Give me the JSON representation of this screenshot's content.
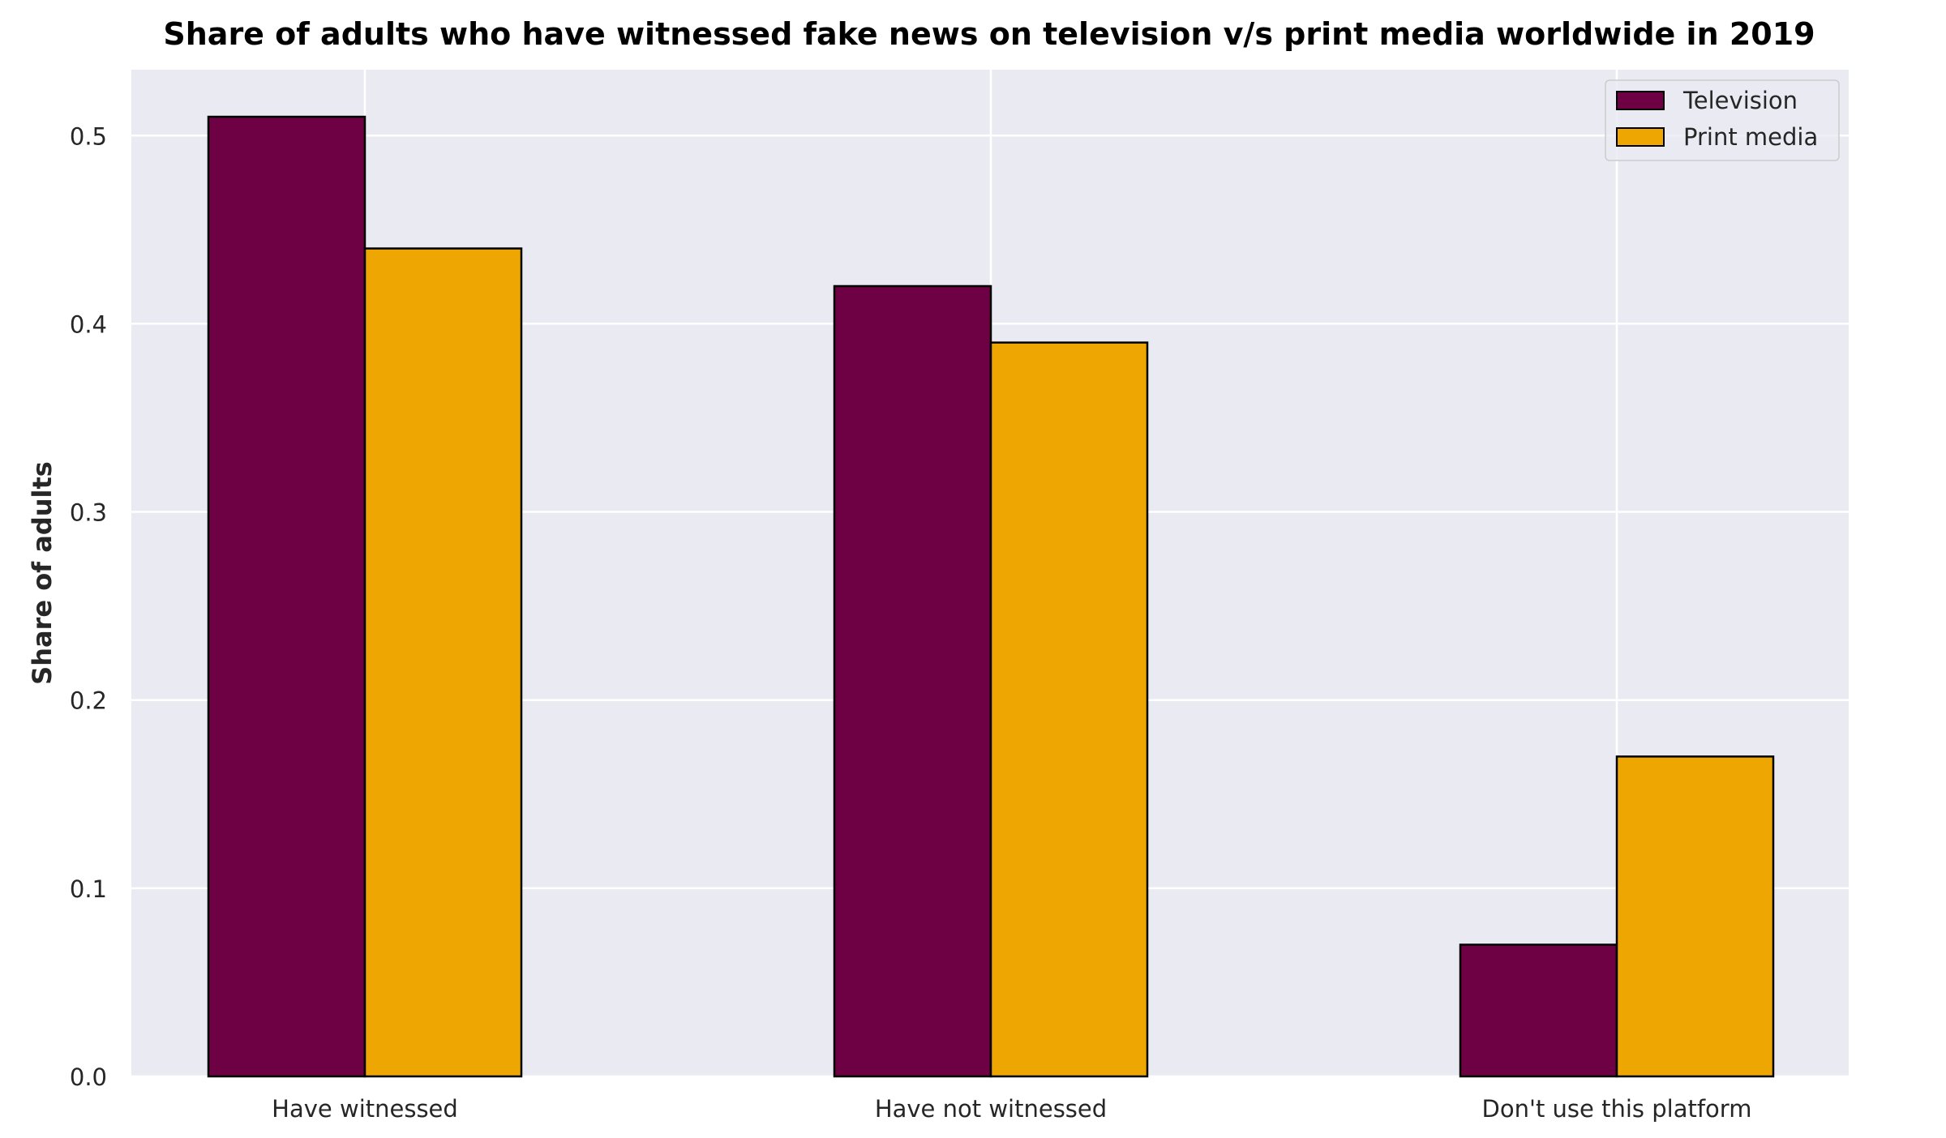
{
  "chart_data": {
    "type": "bar",
    "title": "Share of adults who have witnessed fake news on television v/s print media worldwide in 2019",
    "xlabel": "",
    "ylabel": "Share of adults",
    "categories": [
      "Have witnessed",
      "Have not witnessed",
      "Don't use this platform"
    ],
    "series": [
      {
        "name": "Television",
        "values": [
          0.51,
          0.42,
          0.07
        ],
        "color": "#6e0044"
      },
      {
        "name": "Print media",
        "values": [
          0.44,
          0.39,
          0.17
        ],
        "color": "#eda602"
      }
    ],
    "ylim": [
      0,
      0.535
    ],
    "yticks": [
      0.0,
      0.1,
      0.2,
      0.3,
      0.4,
      0.5
    ],
    "ytick_labels": [
      "0.0",
      "0.1",
      "0.2",
      "0.3",
      "0.4",
      "0.5"
    ],
    "grid": true,
    "legend_position": "top-right",
    "colors": {
      "plot_background": "#eaeaf2",
      "grid": "#ffffff",
      "bar_edge": "#000000",
      "text": "#262626",
      "title": "#000000"
    }
  }
}
